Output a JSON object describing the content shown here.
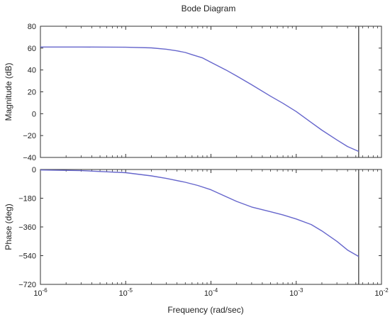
{
  "chart_data": {
    "title": "Bode Diagram",
    "xlabel": "Frequency  (rad/sec)",
    "x_scale": "log",
    "xlim": [
      1e-06,
      0.01
    ],
    "x_ticks": [
      {
        "value": 1e-06,
        "base": "10",
        "exp": "-6"
      },
      {
        "value": 1e-05,
        "base": "10",
        "exp": "-5"
      },
      {
        "value": 0.0001,
        "base": "10",
        "exp": "-4"
      },
      {
        "value": 0.001,
        "base": "10",
        "exp": "-3"
      },
      {
        "value": 0.01,
        "base": "10",
        "exp": "-2"
      }
    ],
    "vertical_line_x": 0.0054,
    "line_color": "#6666cc",
    "axes_color": "#333333",
    "panels": [
      {
        "type": "line",
        "ylabel": "Magnitude (dB)",
        "ylim": [
          -40,
          80
        ],
        "y_ticks": [
          80,
          60,
          40,
          20,
          0,
          -20,
          -40
        ],
        "y_tick_labels": [
          "80",
          "60",
          "40",
          "20",
          "0",
          "−20",
          "−40"
        ],
        "series": [
          {
            "x": [
              1e-06,
              3e-06,
              1e-05,
              2e-05,
              3e-05,
              4e-05,
              5e-05,
              6e-05,
              8e-05,
              0.0001,
              0.00015,
              0.0002,
              0.0003,
              0.0005,
              0.0007,
              0.001,
              0.0015,
              0.002,
              0.003,
              0.004,
              0.0054
            ],
            "y": [
              61,
              61,
              60.8,
              60.2,
              59,
              57.5,
              56,
              54,
              51,
              47,
              40,
              34.5,
              26.5,
              16,
              9.5,
              2,
              -8,
              -15,
              -24,
              -30,
              -34.5
            ]
          }
        ]
      },
      {
        "type": "line",
        "ylabel": "Phase (deg)",
        "ylim": [
          -720,
          0
        ],
        "y_ticks": [
          0,
          -180,
          -360,
          -540,
          -720
        ],
        "y_tick_labels": [
          "0",
          "−180",
          "−360",
          "−540",
          "−720"
        ],
        "series": [
          {
            "x": [
              1e-06,
              3e-06,
              1e-05,
              2e-05,
              3e-05,
              5e-05,
              7e-05,
              0.0001,
              0.00015,
              0.0002,
              0.0003,
              0.0005,
              0.0007,
              0.001,
              0.0015,
              0.002,
              0.003,
              0.004,
              0.0054
            ],
            "y": [
              -3,
              -7,
              -20,
              -40,
              -56,
              -80,
              -100,
              -127,
              -170,
              -200,
              -235,
              -265,
              -285,
              -310,
              -345,
              -385,
              -450,
              -505,
              -545
            ]
          }
        ]
      }
    ]
  }
}
